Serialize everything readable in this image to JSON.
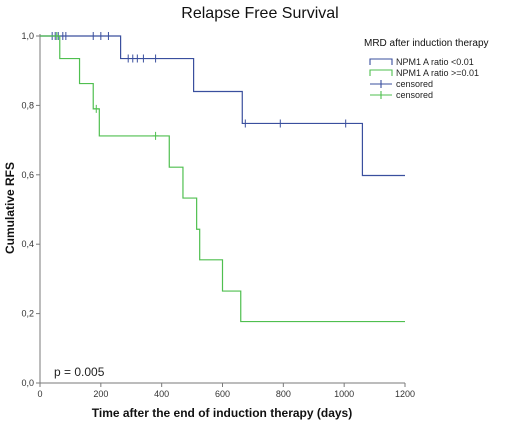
{
  "chart_data": {
    "type": "line",
    "subtype": "kaplan-meier step",
    "title": "Relapse Free Survival",
    "xlabel": "Time after the end of induction therapy (days)",
    "ylabel": "Cumulative RFS",
    "xlim": [
      0,
      1200
    ],
    "ylim": [
      0.0,
      1.0
    ],
    "x_ticks": [
      0,
      200,
      400,
      600,
      800,
      1000,
      1200
    ],
    "y_ticks": [
      {
        "value": 0.0,
        "label": "0,0"
      },
      {
        "value": 0.2,
        "label": "0,2"
      },
      {
        "value": 0.4,
        "label": "0,4"
      },
      {
        "value": 0.6,
        "label": "0,6"
      },
      {
        "value": 0.8,
        "label": "0,8"
      },
      {
        "value": 1.0,
        "label": "1,0"
      }
    ],
    "grid": false,
    "legend": {
      "title": "MRD after induction therapy",
      "placement": "top-right",
      "entries": [
        {
          "label": "NPM1 A ratio  <0.01",
          "series": 0,
          "marker": "line"
        },
        {
          "label": "NPM1 A ratio >=0.01",
          "series": 1,
          "marker": "line"
        },
        {
          "label": "censored",
          "series": 0,
          "marker": "cross"
        },
        {
          "label": "censored",
          "series": 1,
          "marker": "cross"
        }
      ]
    },
    "annotation": "p = 0.005",
    "series": [
      {
        "name": "NPM1 A ratio  <0.01",
        "color": "#3a4f9e",
        "steps": [
          {
            "x": 0,
            "y": 1.0
          },
          {
            "x": 265,
            "y": 0.935
          },
          {
            "x": 505,
            "y": 0.84
          },
          {
            "x": 665,
            "y": 0.748
          },
          {
            "x": 1060,
            "y": 0.598
          },
          {
            "x": 1200,
            "y": 0.598
          }
        ],
        "censored": [
          {
            "x": 40,
            "y": 1.0
          },
          {
            "x": 50,
            "y": 1.0
          },
          {
            "x": 60,
            "y": 1.0
          },
          {
            "x": 75,
            "y": 1.0
          },
          {
            "x": 85,
            "y": 1.0
          },
          {
            "x": 175,
            "y": 1.0
          },
          {
            "x": 200,
            "y": 1.0
          },
          {
            "x": 225,
            "y": 1.0
          },
          {
            "x": 290,
            "y": 0.935
          },
          {
            "x": 305,
            "y": 0.935
          },
          {
            "x": 320,
            "y": 0.935
          },
          {
            "x": 340,
            "y": 0.935
          },
          {
            "x": 380,
            "y": 0.935
          },
          {
            "x": 675,
            "y": 0.748
          },
          {
            "x": 790,
            "y": 0.748
          },
          {
            "x": 1005,
            "y": 0.748
          }
        ]
      },
      {
        "name": "NPM1 A ratio >=0.01",
        "color": "#4fbf4f",
        "steps": [
          {
            "x": 0,
            "y": 1.0
          },
          {
            "x": 65,
            "y": 0.935
          },
          {
            "x": 130,
            "y": 0.863
          },
          {
            "x": 175,
            "y": 0.79
          },
          {
            "x": 195,
            "y": 0.712
          },
          {
            "x": 425,
            "y": 0.622
          },
          {
            "x": 470,
            "y": 0.533
          },
          {
            "x": 515,
            "y": 0.443
          },
          {
            "x": 525,
            "y": 0.355
          },
          {
            "x": 600,
            "y": 0.265
          },
          {
            "x": 660,
            "y": 0.177
          },
          {
            "x": 1200,
            "y": 0.177
          }
        ],
        "censored": [
          {
            "x": 55,
            "y": 1.0
          },
          {
            "x": 185,
            "y": 0.79
          },
          {
            "x": 380,
            "y": 0.712
          }
        ]
      }
    ]
  }
}
